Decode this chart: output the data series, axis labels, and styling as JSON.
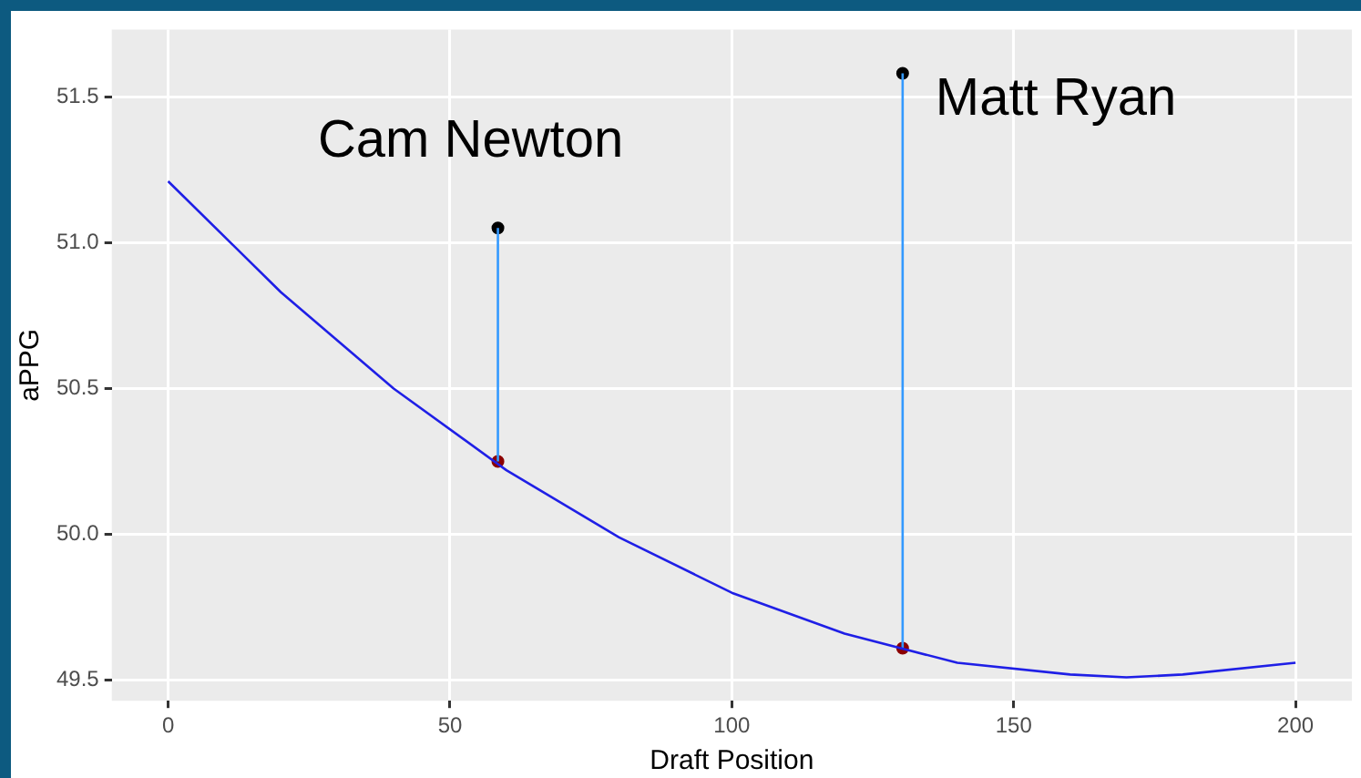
{
  "chart_data": {
    "type": "line",
    "xlabel": "Draft Position",
    "ylabel": "aPPG",
    "xlim": [
      -10,
      210
    ],
    "xticks": [
      0,
      50,
      100,
      150,
      200
    ],
    "ylim": [
      49.43,
      51.73
    ],
    "yticks": [
      {
        "value": 49.5,
        "label": "49.5"
      },
      {
        "value": 50,
        "label": "50.0"
      },
      {
        "value": 50.5,
        "label": "50.5"
      },
      {
        "value": 51,
        "label": "51.0"
      },
      {
        "value": 51.5,
        "label": "51.5"
      }
    ],
    "grid": true,
    "legend": false,
    "series": [
      {
        "color": "#1f1fe6",
        "x": [
          0,
          20,
          40,
          60,
          80,
          100,
          120,
          140,
          160,
          170,
          180,
          200
        ],
        "values": [
          51.21,
          50.83,
          50.5,
          50.22,
          49.99,
          49.8,
          49.66,
          49.56,
          49.52,
          49.51,
          49.52,
          49.56
        ]
      },
      {
        "type": "line",
        "color": "#3399ff",
        "x": [
          58.5,
          58.5
        ],
        "values": [
          50.25,
          51.05
        ]
      },
      {
        "type": "line",
        "color": "#3399ff",
        "x": [
          130.3,
          130.3
        ],
        "values": [
          49.61,
          51.58
        ]
      },
      {
        "type": "scatter",
        "color": "#000000",
        "x": [
          58.5,
          130.3
        ],
        "values": [
          51.05,
          51.58
        ]
      },
      {
        "type": "scatter",
        "color": "#8b0000",
        "x": [
          58.5,
          130.3
        ],
        "values": [
          50.25,
          49.61
        ]
      }
    ],
    "annotations": [
      {
        "text": "Cam Newton",
        "x": 58.5,
        "y": 51.05
      },
      {
        "text": "Matt Ryan",
        "x": 130.3,
        "y": 51.58
      }
    ]
  }
}
